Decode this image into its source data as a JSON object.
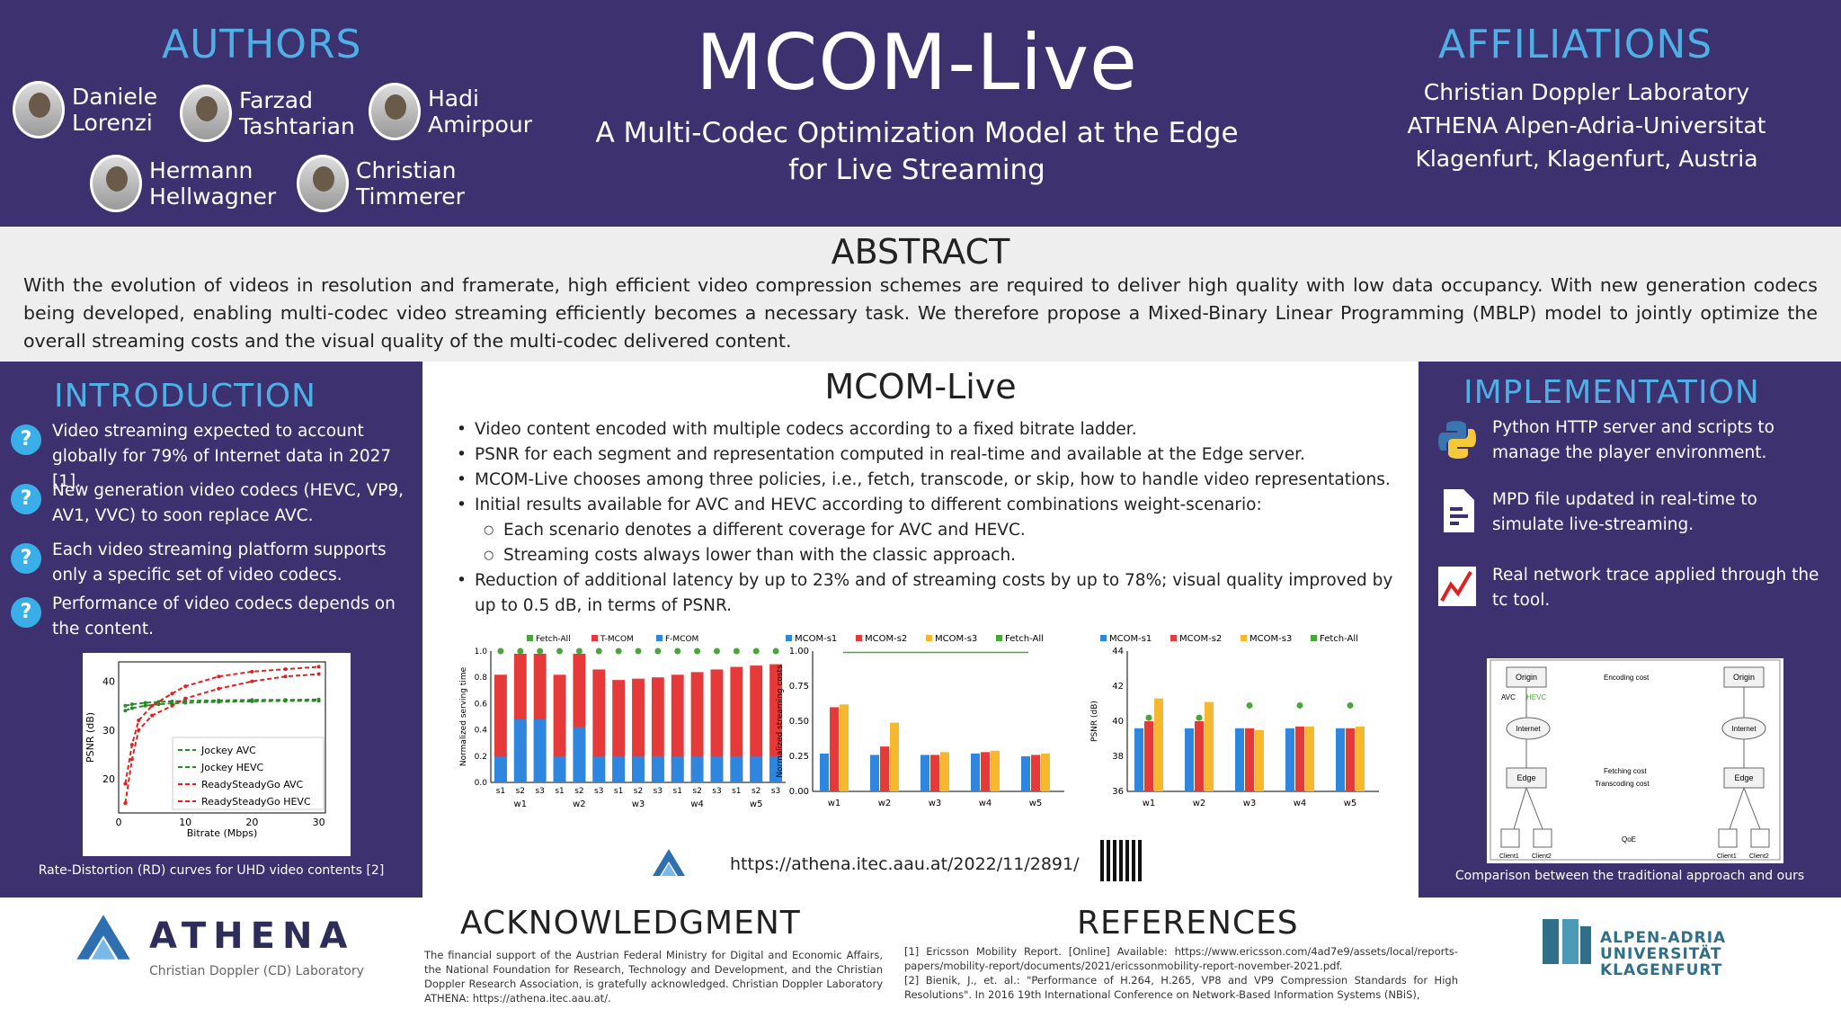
{
  "header": {
    "authors_title": "AUTHORS",
    "authors": [
      "Daniele Lorenzi",
      "Farzad Tashtarian",
      "Hadi Amirpour",
      "Hermann Hellwagner",
      "Christian Timmerer"
    ],
    "title": "MCOM-Live",
    "subtitle": "A Multi-Codec Optimization Model at the Edge for Live Streaming",
    "affiliations_title": "AFFILIATIONS",
    "affiliations": "Christian Doppler Laboratory ATHENA Alpen-Adria-Universitat Klagenfurt, Klagenfurt, Austria"
  },
  "abstract": {
    "title": "ABSTRACT",
    "text": "With the evolution of videos in resolution and framerate, high efficient video compression schemes are required to deliver high quality with low data occupancy. With new generation codecs being developed, enabling multi-codec video streaming efficiently becomes a necessary task. We therefore propose a Mixed-Binary Linear Programming (MBLP) model to jointly optimize the overall streaming costs and the visual quality of the multi-codec delivered content."
  },
  "introduction": {
    "title": "INTRODUCTION",
    "items": [
      "Video streaming expected to account globally for 79% of Internet data in 2027 [1].",
      "New generation video codecs (HEVC, VP9, AV1, VVC) to soon replace AVC.",
      "Each video streaming platform supports only a specific set of video codecs.",
      "Performance of video codecs depends on the content."
    ],
    "caption": "Rate-Distortion (RD) curves for UHD video contents [2]"
  },
  "center": {
    "title": "MCOM-Live",
    "bullets": [
      "Video content encoded with multiple codecs according to a fixed bitrate ladder.",
      "PSNR for each segment and representation computed in real-time and available at the Edge server.",
      "MCOM-Live chooses among three policies, i.e., fetch, transcode, or skip, how to handle video representations.",
      "Initial results available for AVC and HEVC according to different combinations weight-scenario:"
    ],
    "sub_bullets": [
      "Each scenario denotes a different coverage for AVC and HEVC.",
      "Streaming costs always lower than with the classic approach."
    ],
    "last_bullet": "Reduction of additional latency by up to 23% and of streaming costs by up to 78%; visual quality improved by up to 0.5 dB, in terms of PSNR.",
    "url": "https://athena.itec.aau.at/2022/11/2891/"
  },
  "implementation": {
    "title": "IMPLEMENTATION",
    "items": [
      "Python HTTP server and scripts to manage the player environment.",
      "MPD file updated in real-time to simulate live-streaming.",
      "Real network trace applied through the tc tool."
    ],
    "diagram": {
      "origin": "Origin",
      "edge": "Edge",
      "internet": "Internet",
      "encoding_cost": "Encoding cost",
      "fetching_cost": "Fetching cost",
      "transcoding_cost": "Transcoding cost",
      "avc": "AVC",
      "hevc": "HEVC",
      "qoe": "QoE",
      "client1": "Client1",
      "client2": "Client2"
    },
    "caption": "Comparison between the traditional approach and ours"
  },
  "footer": {
    "athena_name": "ATHENA",
    "athena_sub": "Christian Doppler (CD) Laboratory",
    "ack_title": "ACKNOWLEDGMENT",
    "ack_text": "The financial support of the Austrian Federal Ministry for Digital and Economic Affairs, the National Foundation for Research, Technology and Development, and the Christian Doppler Research Association, is gratefully acknowledged. Christian Doppler Laboratory ATHENA: https://athena.itec.aau.at/.",
    "ref_title": "REFERENCES",
    "ref1": "[1] Ericsson Mobility Report. [Online] Available: https://www.ericsson.com/4ad7e9/assets/local/reports-papers/mobility-report/documents/2021/ericssonmobility-report-november-2021.pdf.",
    "ref2": "[2] Bienik, J., et. al.: \"Performance of H.264, H.265, VP8 and VP9 Compression Standards for High Resolutions\". In 2016 19th International Conference on Network-Based Information Systems (NBiS),",
    "aau_lines": [
      "ALPEN-ADRIA",
      "UNIVERSITÄT",
      "KLAGENFURT"
    ]
  },
  "colors": {
    "purple": "#3d3170",
    "title_blue": "#4fb0e6",
    "bar_blue": "#2f86de",
    "bar_red": "#e63a3a",
    "bar_yellow": "#f5b82e",
    "green": "#4aa53b"
  },
  "chart_data": [
    {
      "type": "line",
      "title": "",
      "xlabel": "Bitrate (Mbps)",
      "ylabel": "PSNR (dB)",
      "xlim": [
        0,
        31
      ],
      "ylim": [
        13,
        44
      ],
      "xticks": [
        0,
        10,
        20,
        30
      ],
      "yticks": [
        20,
        30,
        40
      ],
      "series": [
        {
          "name": "Jockey AVC",
          "color": "#2a8a2a",
          "x": [
            1,
            2,
            4,
            6,
            8,
            10,
            15,
            20,
            25,
            30
          ],
          "y": [
            34,
            34.5,
            35,
            35.3,
            35.5,
            35.6,
            35.8,
            35.9,
            36,
            36
          ]
        },
        {
          "name": "Jockey HEVC",
          "color": "#2a8a2a",
          "x": [
            1,
            2,
            4,
            6,
            8,
            10,
            15,
            20,
            25,
            30
          ],
          "y": [
            35,
            35.3,
            35.6,
            35.8,
            35.9,
            36,
            36.1,
            36.2,
            36.2,
            36.3
          ]
        },
        {
          "name": "ReadySteadyGo AVC",
          "color": "#e02020",
          "x": [
            1,
            2,
            3,
            5,
            8,
            10,
            15,
            20,
            25,
            30
          ],
          "y": [
            15,
            24,
            30,
            33,
            35,
            36.5,
            38.5,
            40,
            41,
            41.5
          ]
        },
        {
          "name": "ReadySteadyGo HEVC",
          "color": "#e02020",
          "x": [
            1,
            2,
            3,
            5,
            8,
            10,
            15,
            20,
            25,
            30
          ],
          "y": [
            19,
            27,
            32,
            35,
            37.5,
            39,
            41,
            42,
            42.5,
            43
          ]
        }
      ]
    },
    {
      "type": "bar",
      "ylabel": "Normalized serving time",
      "ylim": [
        0,
        1.0
      ],
      "yticks": [
        "0.0",
        "0.2",
        "0.4",
        "0.6",
        "0.8",
        "1.0"
      ],
      "legend": [
        "Fetch-All",
        "T-MCOM",
        "F-MCOM"
      ],
      "categories": [
        "s1",
        "s2",
        "s3",
        "s1",
        "s2",
        "s3",
        "s1",
        "s2",
        "s3",
        "s1",
        "s2",
        "s3",
        "s1",
        "s2",
        "s3"
      ],
      "groups": [
        "w1",
        "w2",
        "w3",
        "w4",
        "w5"
      ],
      "fetch_all": [
        1,
        1,
        1,
        1,
        1,
        1,
        1,
        1,
        1,
        1,
        1,
        1,
        1,
        1,
        1
      ],
      "t_mcom": [
        0.82,
        0.98,
        0.98,
        0.82,
        0.98,
        0.86,
        0.78,
        0.79,
        0.8,
        0.82,
        0.84,
        0.86,
        0.88,
        0.89,
        0.9
      ],
      "f_mcom": [
        0.2,
        0.48,
        0.48,
        0.2,
        0.42,
        0.2,
        0.2,
        0.2,
        0.2,
        0.2,
        0.2,
        0.2,
        0.2,
        0.2,
        0.2
      ]
    },
    {
      "type": "bar",
      "ylabel": "Normalized streaming costs",
      "ylim": [
        0,
        1.0
      ],
      "yticks": [
        "0.00",
        "0.25",
        "0.50",
        "0.75",
        "1.00"
      ],
      "legend": [
        "MCOM-s1",
        "MCOM-s2",
        "MCOM-s3",
        "Fetch-All"
      ],
      "categories": [
        "w1",
        "w2",
        "w3",
        "w4",
        "w5"
      ],
      "series": [
        {
          "name": "MCOM-s1",
          "values": [
            0.27,
            0.26,
            0.26,
            0.27,
            0.25
          ]
        },
        {
          "name": "MCOM-s2",
          "values": [
            0.6,
            0.32,
            0.26,
            0.28,
            0.26
          ]
        },
        {
          "name": "MCOM-s3",
          "values": [
            0.62,
            0.49,
            0.28,
            0.29,
            0.27
          ]
        }
      ],
      "fetch_all": 0.99
    },
    {
      "type": "bar",
      "ylabel": "PSNR (dB)",
      "ylim": [
        36,
        44
      ],
      "yticks": [
        "36",
        "38",
        "40",
        "42",
        "44"
      ],
      "legend": [
        "MCOM-s1",
        "MCOM-s2",
        "MCOM-s3",
        "Fetch-All"
      ],
      "categories": [
        "w1",
        "w2",
        "w3",
        "w4",
        "w5"
      ],
      "series": [
        {
          "name": "MCOM-s1",
          "values": [
            39.6,
            39.6,
            39.6,
            39.6,
            39.6
          ]
        },
        {
          "name": "MCOM-s2",
          "values": [
            40.0,
            40.0,
            39.6,
            39.7,
            39.6
          ]
        },
        {
          "name": "MCOM-s3",
          "values": [
            41.3,
            41.1,
            39.5,
            39.7,
            39.7
          ]
        }
      ],
      "fetch_all": [
        40.2,
        40.2,
        40.9,
        40.9,
        40.9
      ]
    }
  ]
}
